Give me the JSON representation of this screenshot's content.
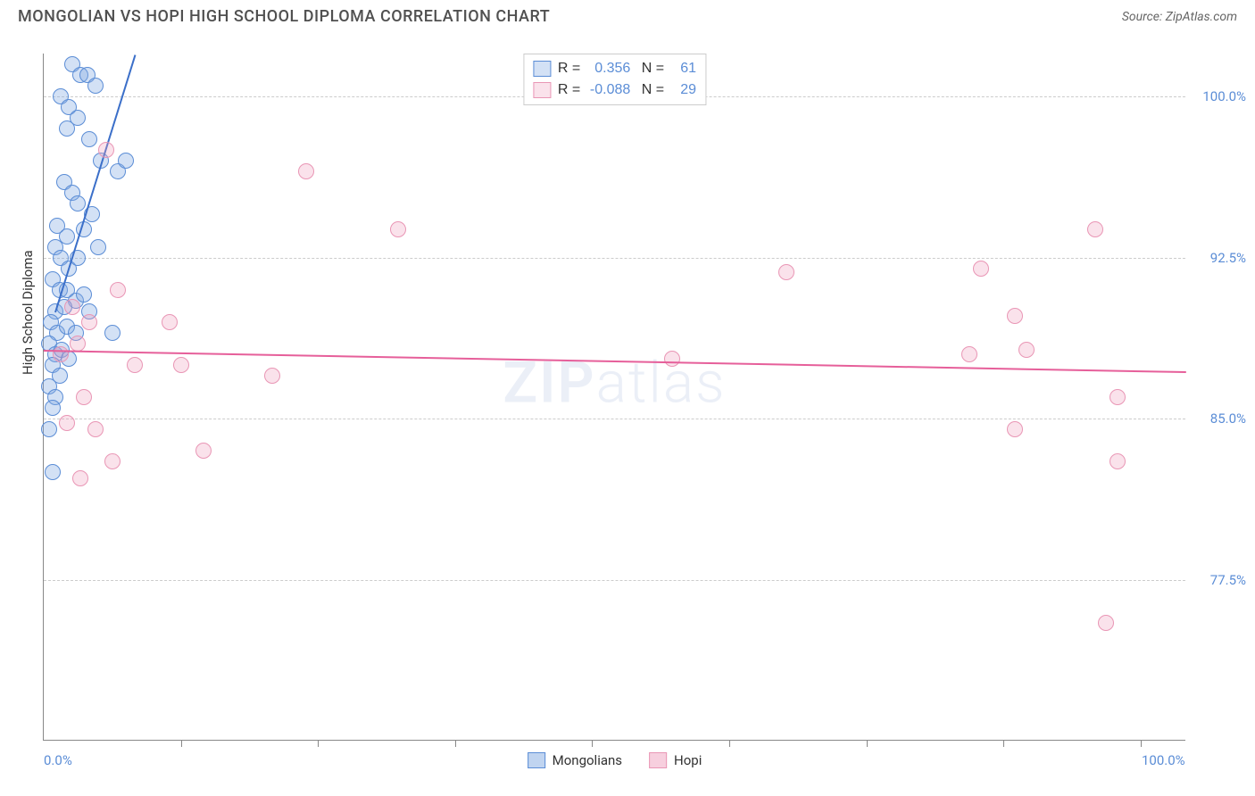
{
  "header": {
    "title": "MONGOLIAN VS HOPI HIGH SCHOOL DIPLOMA CORRELATION CHART",
    "source": "Source: ZipAtlas.com"
  },
  "chart": {
    "type": "scatter",
    "ylabel": "High School Diploma",
    "xlim": [
      0,
      100
    ],
    "ylim": [
      70,
      102
    ],
    "yticks": [
      {
        "v": 77.5,
        "label": "77.5%"
      },
      {
        "v": 85.0,
        "label": "85.0%"
      },
      {
        "v": 92.5,
        "label": "92.5%"
      },
      {
        "v": 100.0,
        "label": "100.0%"
      }
    ],
    "xtick_marks": [
      12,
      24,
      36,
      48,
      60,
      72,
      84,
      96
    ],
    "xlabels": [
      {
        "v": 0,
        "label": "0.0%"
      },
      {
        "v": 100,
        "label": "100.0%"
      }
    ],
    "grid_color": "#cccccc",
    "background": "#ffffff",
    "watermark": "ZIPatlas",
    "series": [
      {
        "name": "Mongolians",
        "fill": "rgba(130,170,225,0.35)",
        "stroke": "#5b8dd6",
        "R": "0.356",
        "N": "61",
        "trend": {
          "x1": 1,
          "y1": 90.0,
          "x2": 8,
          "y2": 102,
          "color": "#3b6fc9",
          "width": 2
        },
        "points": [
          {
            "x": 2.5,
            "y": 101.5
          },
          {
            "x": 3.2,
            "y": 101
          },
          {
            "x": 3.8,
            "y": 101
          },
          {
            "x": 4.5,
            "y": 100.5
          },
          {
            "x": 1.5,
            "y": 100
          },
          {
            "x": 2.2,
            "y": 99.5
          },
          {
            "x": 3,
            "y": 99
          },
          {
            "x": 2,
            "y": 98.5
          },
          {
            "x": 4,
            "y": 98
          },
          {
            "x": 5,
            "y": 97
          },
          {
            "x": 6.5,
            "y": 96.5
          },
          {
            "x": 7.2,
            "y": 97
          },
          {
            "x": 1.8,
            "y": 96
          },
          {
            "x": 2.5,
            "y": 95.5
          },
          {
            "x": 3,
            "y": 95
          },
          {
            "x": 4.2,
            "y": 94.5
          },
          {
            "x": 1.2,
            "y": 94
          },
          {
            "x": 2,
            "y": 93.5
          },
          {
            "x": 3.5,
            "y": 93.8
          },
          {
            "x": 4.8,
            "y": 93
          },
          {
            "x": 1,
            "y": 93
          },
          {
            "x": 1.5,
            "y": 92.5
          },
          {
            "x": 2.2,
            "y": 92
          },
          {
            "x": 3,
            "y": 92.5
          },
          {
            "x": 0.8,
            "y": 91.5
          },
          {
            "x": 1.4,
            "y": 91
          },
          {
            "x": 2,
            "y": 91
          },
          {
            "x": 2.8,
            "y": 90.5
          },
          {
            "x": 3.5,
            "y": 90.8
          },
          {
            "x": 1,
            "y": 90
          },
          {
            "x": 1.8,
            "y": 90.2
          },
          {
            "x": 0.6,
            "y": 89.5
          },
          {
            "x": 1.2,
            "y": 89
          },
          {
            "x": 2,
            "y": 89.3
          },
          {
            "x": 2.8,
            "y": 89
          },
          {
            "x": 0.5,
            "y": 88.5
          },
          {
            "x": 1,
            "y": 88
          },
          {
            "x": 1.6,
            "y": 88.2
          },
          {
            "x": 2.2,
            "y": 87.8
          },
          {
            "x": 0.8,
            "y": 87.5
          },
          {
            "x": 1.4,
            "y": 87
          },
          {
            "x": 0.5,
            "y": 86.5
          },
          {
            "x": 1,
            "y": 86
          },
          {
            "x": 0.8,
            "y": 85.5
          },
          {
            "x": 0.5,
            "y": 84.5
          },
          {
            "x": 0.8,
            "y": 82.5
          },
          {
            "x": 6,
            "y": 89
          },
          {
            "x": 4,
            "y": 90
          }
        ]
      },
      {
        "name": "Hopi",
        "fill": "rgba(240,160,190,0.30)",
        "stroke": "#e996b5",
        "R": "-0.088",
        "N": "29",
        "trend": {
          "x1": 0,
          "y1": 88.2,
          "x2": 100,
          "y2": 87.2,
          "color": "#e65f9a",
          "width": 2
        },
        "points": [
          {
            "x": 5.5,
            "y": 97.5
          },
          {
            "x": 23,
            "y": 96.5
          },
          {
            "x": 31,
            "y": 93.8
          },
          {
            "x": 92,
            "y": 93.8
          },
          {
            "x": 82,
            "y": 92
          },
          {
            "x": 65,
            "y": 91.8
          },
          {
            "x": 6.5,
            "y": 91
          },
          {
            "x": 2.5,
            "y": 90.2
          },
          {
            "x": 85,
            "y": 89.8
          },
          {
            "x": 55,
            "y": 87.8
          },
          {
            "x": 81,
            "y": 88
          },
          {
            "x": 3,
            "y": 88.5
          },
          {
            "x": 1.5,
            "y": 88
          },
          {
            "x": 8,
            "y": 87.5
          },
          {
            "x": 12,
            "y": 87.5
          },
          {
            "x": 20,
            "y": 87
          },
          {
            "x": 94,
            "y": 86
          },
          {
            "x": 3.5,
            "y": 86
          },
          {
            "x": 85,
            "y": 84.5
          },
          {
            "x": 2,
            "y": 84.8
          },
          {
            "x": 4.5,
            "y": 84.5
          },
          {
            "x": 14,
            "y": 83.5
          },
          {
            "x": 94,
            "y": 83
          },
          {
            "x": 6,
            "y": 83
          },
          {
            "x": 3.2,
            "y": 82.2
          },
          {
            "x": 93,
            "y": 75.5
          },
          {
            "x": 86,
            "y": 88.2
          },
          {
            "x": 4,
            "y": 89.5
          },
          {
            "x": 11,
            "y": 89.5
          }
        ]
      }
    ],
    "bottom_legend": [
      {
        "label": "Mongolians",
        "fill": "rgba(130,170,225,0.5)",
        "stroke": "#5b8dd6"
      },
      {
        "label": "Hopi",
        "fill": "rgba(240,160,190,0.5)",
        "stroke": "#e996b5"
      }
    ]
  }
}
